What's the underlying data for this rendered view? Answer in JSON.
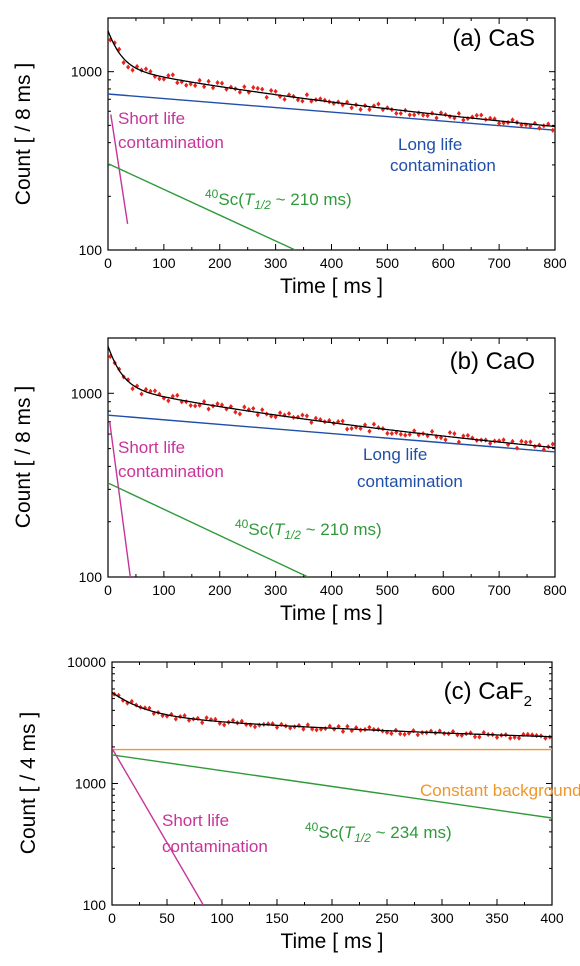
{
  "chart_data": [
    {
      "type": "scatter",
      "panel_label": "(a) CaS",
      "xlabel": "Time [ ms ]",
      "ylabel": "Count [ / 8 ms ]",
      "xlim": [
        0,
        800
      ],
      "ylim": [
        100,
        2000
      ],
      "yscale": "log",
      "xticks": [
        "0",
        "100",
        "200",
        "300",
        "400",
        "500",
        "600",
        "700",
        "800"
      ],
      "yticks": [
        "100",
        "1000"
      ],
      "grid": false,
      "series": [
        {
          "component": "data",
          "color": "#e8231b",
          "model": {
            "A": 750,
            "tauA": 1720,
            "B": 305,
            "tauB": 303,
            "C": 640,
            "tauC": 21
          }
        },
        {
          "name": "Short life contamination",
          "color": "#c8339a",
          "x": [
            5,
            35
          ],
          "y": [
            575,
            140
          ]
        },
        {
          "name": "Long life contamination",
          "color": "#1f4fa8",
          "x": [
            0,
            800
          ],
          "y": [
            750,
            470
          ]
        },
        {
          "name": "40Sc(T1/2 ~ 210 ms)",
          "color": "#2e9a3a",
          "x": [
            0,
            335
          ],
          "y": [
            305,
            100
          ]
        },
        {
          "component": "fit",
          "color": "#000000"
        }
      ],
      "annotations": [
        {
          "text": "Short life",
          "color": "#c8339a"
        },
        {
          "text": "contamination",
          "color": "#c8339a"
        },
        {
          "text": "Long life",
          "color": "#1f4fa8"
        },
        {
          "text": "contamination",
          "color": "#1f4fa8"
        },
        {
          "sup": "40",
          "main": "Sc(",
          "ital": "T",
          "sub": "1/2",
          "rest": " ~ 210 ms)",
          "color": "#2e9a3a"
        }
      ]
    },
    {
      "type": "scatter",
      "panel_label": "(b) CaO",
      "xlabel": "Time [ ms ]",
      "ylabel": "Count [ / 8 ms ]",
      "xlim": [
        0,
        800
      ],
      "ylim": [
        100,
        2000
      ],
      "yscale": "log",
      "xticks": [
        "0",
        "100",
        "200",
        "300",
        "400",
        "500",
        "600",
        "700",
        "800"
      ],
      "yticks": [
        "100",
        "1000"
      ],
      "grid": false,
      "series": [
        {
          "component": "data",
          "color": "#e8231b",
          "model": {
            "A": 760,
            "tauA": 1760,
            "B": 325,
            "tauB": 303,
            "C": 720,
            "tauC": 21
          }
        },
        {
          "name": "Short life contamination",
          "color": "#c8339a",
          "x": [
            3,
            40
          ],
          "y": [
            700,
            100
          ]
        },
        {
          "name": "Long life contamination",
          "color": "#1f4fa8",
          "x": [
            0,
            800
          ],
          "y": [
            760,
            480
          ]
        },
        {
          "name": "40Sc(T1/2 ~ 210 ms)",
          "color": "#2e9a3a",
          "x": [
            0,
            358
          ],
          "y": [
            325,
            100
          ]
        },
        {
          "component": "fit",
          "color": "#000000"
        }
      ],
      "annotations": [
        {
          "text": "Short life",
          "color": "#c8339a"
        },
        {
          "text": "contamination",
          "color": "#c8339a"
        },
        {
          "text": "Long life",
          "color": "#1f4fa8"
        },
        {
          "text": "contamination",
          "color": "#1f4fa8"
        },
        {
          "sup": "40",
          "main": "Sc(",
          "ital": "T",
          "sub": "1/2",
          "rest": " ~ 210 ms)",
          "color": "#2e9a3a"
        }
      ]
    },
    {
      "type": "scatter",
      "panel_label": "(c) CaF",
      "panel_label_sub": "2",
      "xlabel": "Time [ ms ]",
      "ylabel": "Count [ / 4 ms ]",
      "xlim": [
        0,
        400
      ],
      "ylim": [
        100,
        10000
      ],
      "yscale": "log",
      "xticks": [
        "0",
        "50",
        "100",
        "150",
        "200",
        "250",
        "300",
        "350",
        "400"
      ],
      "yticks": [
        "100",
        "1000",
        "10000"
      ],
      "grid": false,
      "series": [
        {
          "component": "data",
          "color": "#e8231b",
          "model": {
            "A": 1900,
            "tauA": 1000000000.0,
            "B": 1720,
            "tauB": 338,
            "C": 2000,
            "tauC": 26
          }
        },
        {
          "name": "Constant background",
          "color": "#f0962a",
          "x": [
            0,
            400
          ],
          "y": [
            1900,
            1900
          ]
        },
        {
          "name": "Short life contamination",
          "color": "#c8339a",
          "x": [
            0,
            83
          ],
          "y": [
            1950,
            100
          ]
        },
        {
          "name": "40Sc(T1/2 ~ 234 ms)",
          "color": "#2e9a3a",
          "x": [
            0,
            400
          ],
          "y": [
            1720,
            520
          ]
        },
        {
          "component": "fit",
          "color": "#000000"
        }
      ],
      "annotations": [
        {
          "text": "Constant background",
          "color": "#f0962a"
        },
        {
          "text": "Short life",
          "color": "#c8339a"
        },
        {
          "text": "contamination",
          "color": "#c8339a"
        },
        {
          "sup": "40",
          "main": "Sc(",
          "ital": "T",
          "sub": "1/2",
          "rest": " ~ 234 ms)",
          "color": "#2e9a3a"
        }
      ]
    }
  ]
}
